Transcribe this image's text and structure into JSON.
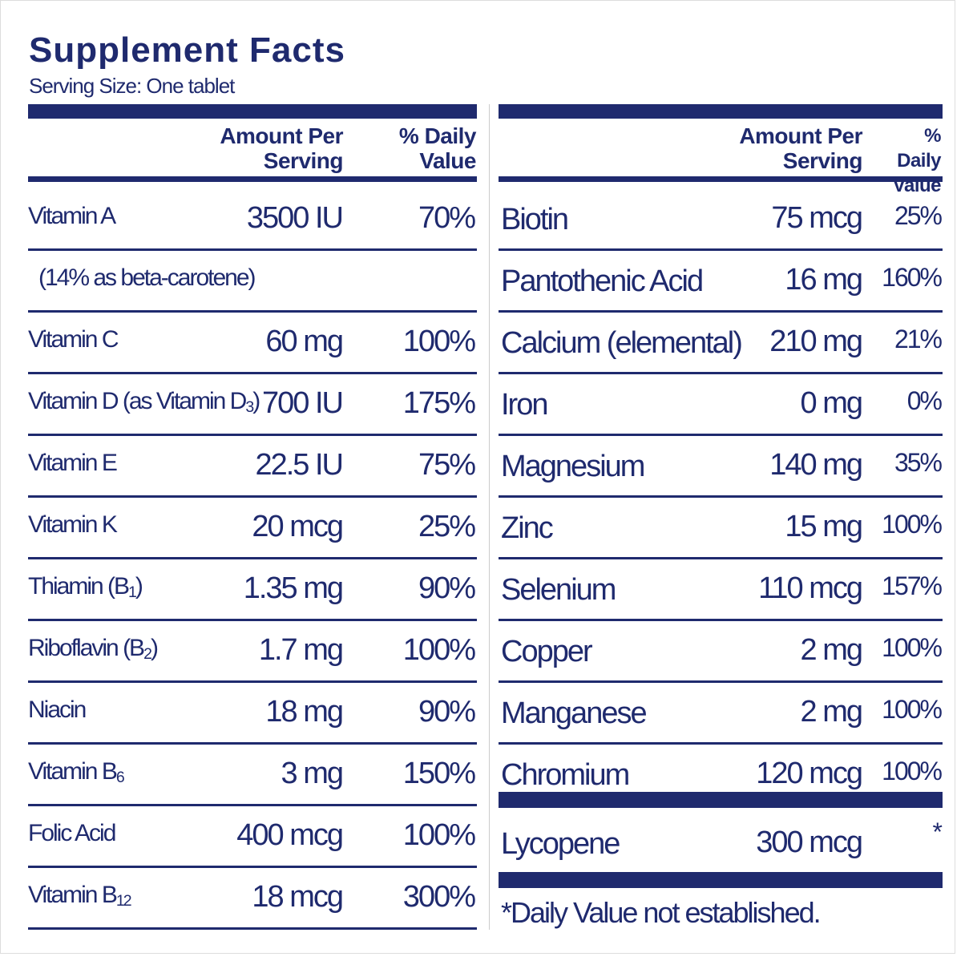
{
  "header": {
    "title": "Supplement Facts",
    "serving": "Serving Size: One tablet"
  },
  "left": {
    "col_amount": "Amount Per Serving",
    "col_dv": "% Daily Value",
    "rows": [
      {
        "name": "Vitamin A",
        "amount": "3500 IU",
        "dv": "70%"
      },
      {
        "name": "(14% as beta-carotene)"
      },
      {
        "name": "Vitamin C",
        "amount": "60 mg",
        "dv": "100%"
      },
      {
        "name": "Vitamin D (as Vitamin D",
        "sub": "3",
        "tail": ")",
        "amount": "700 IU",
        "dv": "175%"
      },
      {
        "name": "Vitamin E",
        "amount": "22.5 IU",
        "dv": "75%"
      },
      {
        "name": "Vitamin K",
        "amount": "20 mcg",
        "dv": "25%"
      },
      {
        "name": "Thiamin (B",
        "sub": "1",
        "tail": ")",
        "amount": "1.35 mg",
        "dv": "90%"
      },
      {
        "name": "Riboflavin (B",
        "sub": "2",
        "tail": ")",
        "amount": "1.7 mg",
        "dv": "100%"
      },
      {
        "name": "Niacin",
        "amount": "18 mg",
        "dv": "90%"
      },
      {
        "name": "Vitamin B",
        "sub": "6",
        "amount": "3 mg",
        "dv": "150%"
      },
      {
        "name": "Folic Acid",
        "amount": "400 mcg",
        "dv": "100%"
      },
      {
        "name": "Vitamin B",
        "sub": "12",
        "amount": "18 mcg",
        "dv": "300%"
      }
    ]
  },
  "right": {
    "col_amount": "Amount Per Serving",
    "col_dv": "% Daily Value",
    "rows": [
      {
        "name": "Biotin",
        "amount": "75 mcg",
        "dv": "25%"
      },
      {
        "name": "Pantothenic Acid",
        "amount": "16 mg",
        "dv": "160%"
      },
      {
        "name": "Calcium (elemental)",
        "amount": "210 mg",
        "dv": "21%"
      },
      {
        "name": "Iron",
        "amount": "0 mg",
        "dv": "0%"
      },
      {
        "name": "Magnesium",
        "amount": "140 mg",
        "dv": "35%"
      },
      {
        "name": "Zinc",
        "amount": "15 mg",
        "dv": "100%"
      },
      {
        "name": "Selenium",
        "amount": "110 mcg",
        "dv": "157%"
      },
      {
        "name": "Copper",
        "amount": "2 mg",
        "dv": "100%"
      },
      {
        "name": "Manganese",
        "amount": "2 mg",
        "dv": "100%"
      },
      {
        "name": "Chromium",
        "amount": "120 mcg",
        "dv": "100%"
      }
    ],
    "extra": {
      "name": "Lycopene",
      "amount": "300 mcg",
      "dv": "*"
    },
    "footnote": "*Daily Value not established."
  }
}
